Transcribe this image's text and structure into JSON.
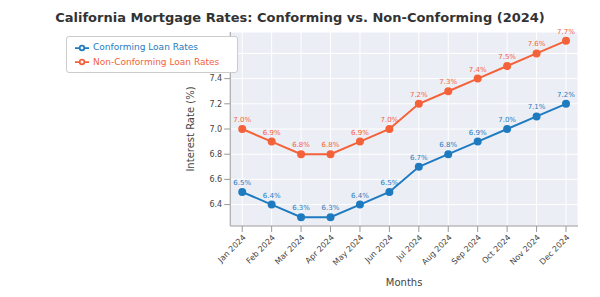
{
  "chart_data": {
    "type": "line",
    "title": "California Mortgage Rates: Conforming vs. Non-Conforming (2024)",
    "x_label": "Months",
    "y_label": "Interest Rate (%)",
    "categories": [
      "Jan 2024",
      "Feb 2024",
      "Mar 2024",
      "Apr 2024",
      "May 2024",
      "Jun 2024",
      "Jul 2024",
      "Aug 2024",
      "Sep 2024",
      "Oct 2024",
      "Nov 2024",
      "Dec 2024"
    ],
    "series": [
      {
        "name": "Conforming Loan Rates",
        "color": "#1f7bc0",
        "marker": "circle",
        "values": [
          6.5,
          6.4,
          6.3,
          6.3,
          6.4,
          6.5,
          6.7,
          6.8,
          6.9,
          7.0,
          7.1,
          7.2
        ],
        "value_labels": [
          "6.5%",
          "6.4%",
          "6.3%",
          "6.3%",
          "6.4%",
          "6.5%",
          "6.7%",
          "6.8%",
          "6.9%",
          "7.0%",
          "7.1%",
          "7.2%"
        ]
      },
      {
        "name": "Non-Conforming Loan Rates",
        "color": "#f4623a",
        "marker": "circle",
        "values": [
          7.0,
          6.9,
          6.8,
          6.8,
          6.9,
          7.0,
          7.2,
          7.3,
          7.4,
          7.5,
          7.6,
          7.7
        ],
        "value_labels": [
          "7.0%",
          "6.9%",
          "6.8%",
          "6.8%",
          "6.9%",
          "7.0%",
          "7.2%",
          "7.3%",
          "7.4%",
          "7.5%",
          "7.6%",
          "7.7%"
        ]
      }
    ],
    "ylim": [
      6.23,
      7.77
    ],
    "yticks": [
      6.4,
      6.6,
      6.8,
      {
        "value": 7,
        "label": "7.0"
      },
      7.2,
      7.4,
      7.6
    ],
    "grid": true,
    "legend": "upper left",
    "data_labels": true
  }
}
